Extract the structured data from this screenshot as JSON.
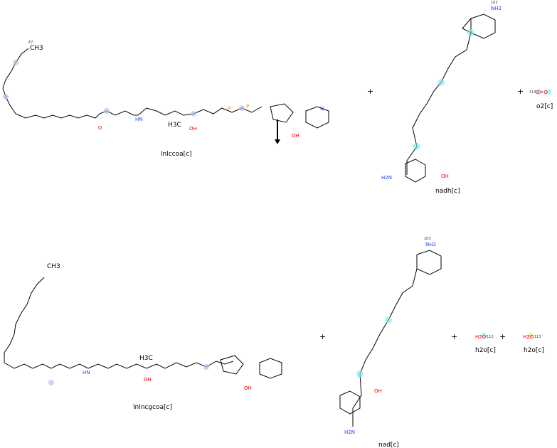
{
  "reaction": {
    "reactants": [
      {
        "id": "lnlccoa",
        "label": "lnlccoa[c]"
      },
      {
        "id": "nadh",
        "label": "nadh[c]"
      },
      {
        "id": "o2",
        "label": "o2[c]"
      }
    ],
    "products": [
      {
        "id": "lnlncgcoa",
        "label": "lnlncgcoa[c]"
      },
      {
        "id": "nad",
        "label": "nad[c]"
      },
      {
        "id": "h2o_1",
        "label": "h2o[c]"
      },
      {
        "id": "h2o_2",
        "label": "h2o[c]"
      }
    ],
    "plus": "+",
    "atom_text": {
      "ch3": "CH3",
      "nh2": "NH2",
      "h2o": "H2O",
      "o2": "O=O",
      "n": "N",
      "o": "O",
      "p": "P",
      "oh": "OH",
      "h3c": "H3C",
      "hn": "HN",
      "h2n": "H2N"
    },
    "atom_numbers": {
      "ch3_top": "67",
      "o2_a": "113",
      "o2_b": "112",
      "h2o_1": "112",
      "h2o_2": "113",
      "nadh_nh2": "103",
      "nad_nh2": "103"
    }
  },
  "colors": {
    "carbon_highlight": "#b8bdf0",
    "nad_highlight": "#7fe8e8",
    "nitrogen": "#2040ff",
    "oxygen": "#ff0000",
    "phosphorus": "#ff8000"
  }
}
